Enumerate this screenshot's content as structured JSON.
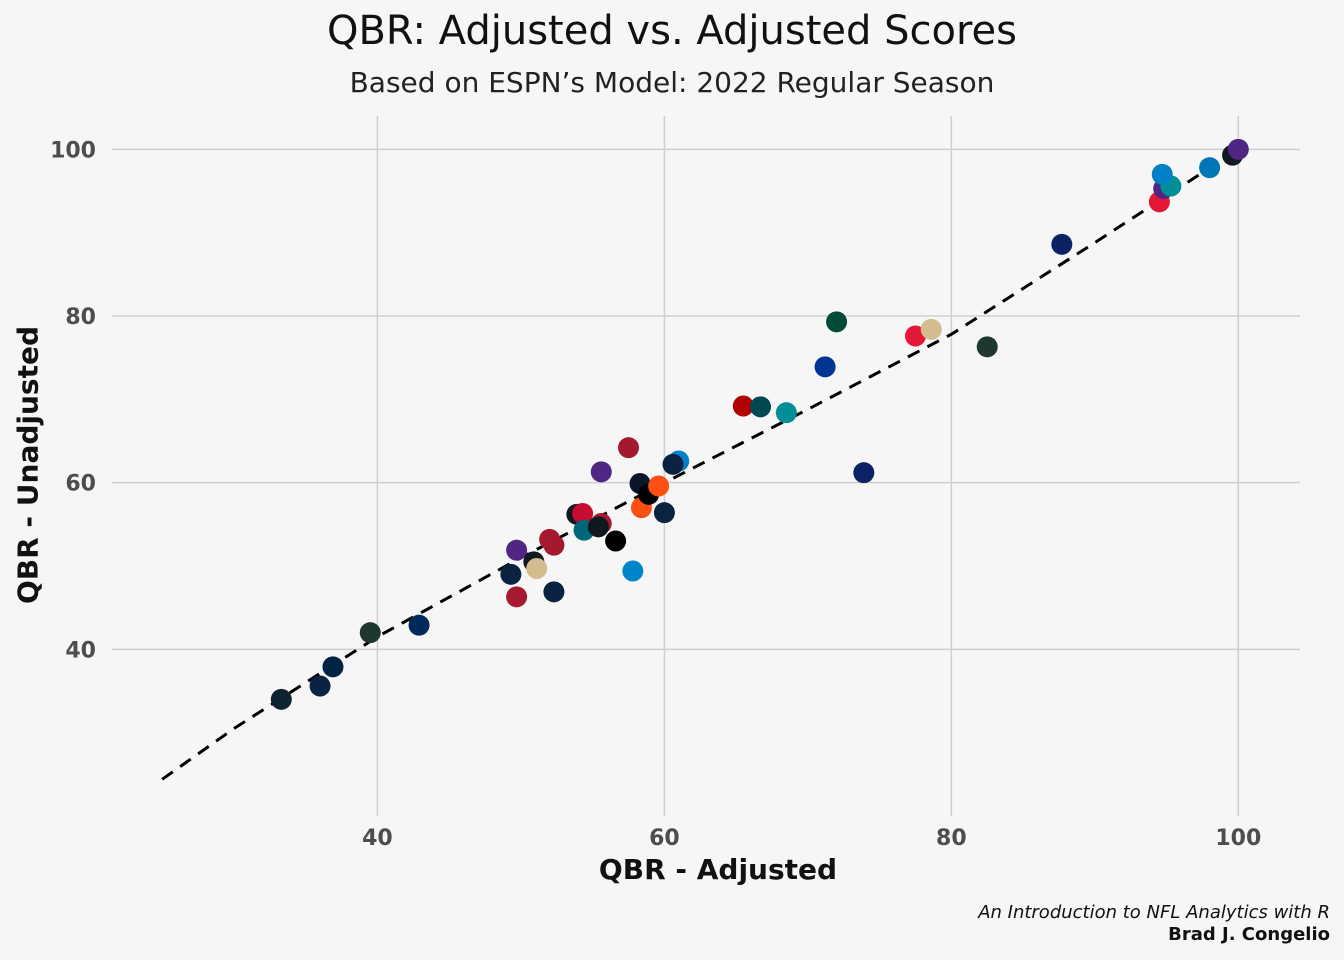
{
  "title": "QBR: Adjusted vs. Adjusted Scores",
  "subtitle": "Based on ESPN’s Model: 2022 Regular Season",
  "caption": {
    "line1": "An Introduction to NFL Analytics with R",
    "line2": "Brad J. Congelio"
  },
  "chart_data": {
    "type": "scatter",
    "title": "QBR: Adjusted vs. Adjusted Scores",
    "subtitle": "Based on ESPN’s Model: 2022 Regular Season",
    "xlabel": "QBR - Adjusted",
    "ylabel": "QBR - Unadjusted",
    "xlim": [
      21.5,
      104.3
    ],
    "ylim": [
      20.0,
      104.0
    ],
    "xticks": [
      40,
      60,
      80,
      100
    ],
    "yticks": [
      40,
      60,
      80,
      100
    ],
    "grid": true,
    "legend": "none",
    "trend_line": {
      "style": "dashed",
      "color": "#000000",
      "x": [
        25,
        30,
        40,
        50,
        60,
        70,
        80,
        90,
        100
      ],
      "y": [
        24.4,
        30.5,
        41.5,
        51.0,
        60.0,
        68.8,
        77.8,
        88.8,
        100.0
      ]
    },
    "points": [
      {
        "x": 33.3,
        "y": 34.0,
        "color": "#0c2432"
      },
      {
        "x": 36.0,
        "y": 35.6,
        "color": "#0b2342"
      },
      {
        "x": 36.9,
        "y": 37.9,
        "color": "#002244"
      },
      {
        "x": 39.5,
        "y": 42.0,
        "color": "#203731"
      },
      {
        "x": 42.9,
        "y": 42.9,
        "color": "#002a5c"
      },
      {
        "x": 49.3,
        "y": 49.0,
        "color": "#0b2342"
      },
      {
        "x": 49.7,
        "y": 46.3,
        "color": "#a71930"
      },
      {
        "x": 49.7,
        "y": 51.9,
        "color": "#4f2683"
      },
      {
        "x": 50.9,
        "y": 50.5,
        "color": "#101820"
      },
      {
        "x": 51.1,
        "y": 49.7,
        "color": "#d3bc8d"
      },
      {
        "x": 52.0,
        "y": 53.2,
        "color": "#a71930"
      },
      {
        "x": 52.3,
        "y": 52.5,
        "color": "#a5192e"
      },
      {
        "x": 52.3,
        "y": 46.9,
        "color": "#0b2342"
      },
      {
        "x": 53.9,
        "y": 56.2,
        "color": "#101820"
      },
      {
        "x": 54.3,
        "y": 56.3,
        "color": "#c60c30"
      },
      {
        "x": 54.4,
        "y": 54.3,
        "color": "#006778"
      },
      {
        "x": 55.6,
        "y": 55.1,
        "color": "#a71930"
      },
      {
        "x": 55.4,
        "y": 54.7,
        "color": "#101820"
      },
      {
        "x": 55.6,
        "y": 61.3,
        "color": "#4f2683"
      },
      {
        "x": 56.6,
        "y": 53.0,
        "color": "#000000"
      },
      {
        "x": 57.5,
        "y": 64.2,
        "color": "#a5192e"
      },
      {
        "x": 57.8,
        "y": 49.4,
        "color": "#0085ca"
      },
      {
        "x": 58.3,
        "y": 59.9,
        "color": "#0b162a"
      },
      {
        "x": 58.4,
        "y": 57.0,
        "color": "#fb4f14"
      },
      {
        "x": 58.9,
        "y": 58.6,
        "color": "#000000"
      },
      {
        "x": 59.6,
        "y": 59.6,
        "color": "#fb4f14"
      },
      {
        "x": 60.0,
        "y": 56.4,
        "color": "#0b2342"
      },
      {
        "x": 61.0,
        "y": 62.6,
        "color": "#0080c6"
      },
      {
        "x": 60.6,
        "y": 62.2,
        "color": "#0b2342"
      },
      {
        "x": 65.5,
        "y": 69.2,
        "color": "#b20000"
      },
      {
        "x": 66.7,
        "y": 69.1,
        "color": "#004953"
      },
      {
        "x": 68.5,
        "y": 68.4,
        "color": "#008e97"
      },
      {
        "x": 71.2,
        "y": 73.9,
        "color": "#003594"
      },
      {
        "x": 72.0,
        "y": 79.3,
        "color": "#004c38"
      },
      {
        "x": 73.9,
        "y": 61.2,
        "color": "#0b2265"
      },
      {
        "x": 77.5,
        "y": 77.6,
        "color": "#e31837"
      },
      {
        "x": 78.6,
        "y": 78.4,
        "color": "#d3bc8d"
      },
      {
        "x": 82.5,
        "y": 76.3,
        "color": "#203731"
      },
      {
        "x": 87.7,
        "y": 88.6,
        "color": "#0b2265"
      },
      {
        "x": 94.5,
        "y": 93.7,
        "color": "#e31837"
      },
      {
        "x": 94.8,
        "y": 95.3,
        "color": "#4f2683"
      },
      {
        "x": 95.3,
        "y": 95.6,
        "color": "#008e97"
      },
      {
        "x": 94.7,
        "y": 97.0,
        "color": "#0080c6"
      },
      {
        "x": 98.0,
        "y": 97.8,
        "color": "#0076b6"
      },
      {
        "x": 99.6,
        "y": 99.3,
        "color": "#101820"
      },
      {
        "x": 100.0,
        "y": 100.0,
        "color": "#4f2683"
      }
    ]
  }
}
